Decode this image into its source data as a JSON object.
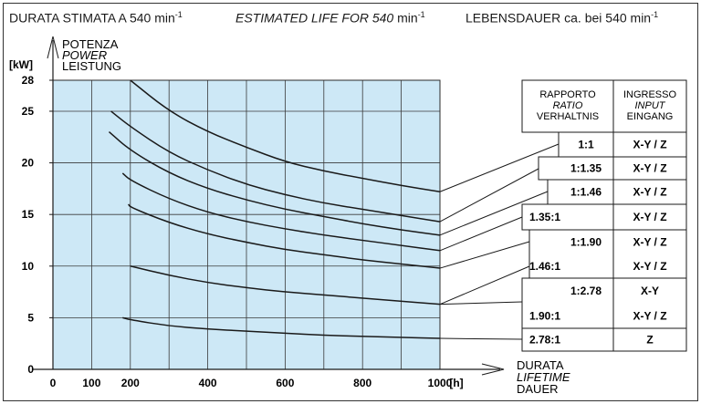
{
  "header": {
    "it_label": "DURATA STIMATA A 540 min",
    "en_label": "ESTIMATED LIFE FOR 540",
    "en_unit": " min",
    "de_label": "LEBENSDAUER ca. bei 540 min",
    "exponent": "-1"
  },
  "chart_data": {
    "type": "line",
    "y_axis": {
      "unit": "[kW]",
      "labels": [
        "POTENZA",
        "POWER",
        "LEISTUNG"
      ],
      "range": [
        0,
        28
      ],
      "ticks": [
        "0",
        "5",
        "10",
        "15",
        "20",
        "25",
        "28"
      ]
    },
    "x_axis": {
      "unit": "[h]",
      "labels": [
        "DURATA",
        "LIFETIME",
        "DAUER"
      ],
      "range": [
        0,
        1000
      ],
      "ticks": [
        "0",
        "100",
        "200",
        "400",
        "600",
        "800",
        "1000"
      ]
    },
    "grid": true,
    "series": [
      {
        "ratio": "1:1",
        "input": "X-Y / Z",
        "x": [
          200,
          300,
          400,
          500,
          600,
          700,
          800,
          900,
          1000
        ],
        "y": [
          28,
          25,
          23,
          21.5,
          20.1,
          19.2,
          18.5,
          17.8,
          17.2
        ]
      },
      {
        "ratio": "1:1.35",
        "input": "X-Y / Z",
        "x": [
          150,
          200,
          300,
          400,
          500,
          600,
          700,
          800,
          900,
          1000
        ],
        "y": [
          25,
          23.5,
          21,
          19.3,
          17.9,
          16.9,
          16.1,
          15.5,
          14.9,
          14.3
        ]
      },
      {
        "ratio": "1:1.46",
        "input": "X-Y / Z",
        "x": [
          145,
          200,
          300,
          400,
          500,
          600,
          700,
          800,
          900,
          1000
        ],
        "y": [
          23,
          21.2,
          19,
          17.5,
          16.4,
          15.5,
          14.8,
          14.1,
          13.5,
          13
        ]
      },
      {
        "ratio": "1:1.90",
        "input": "X-Y / Z",
        "x": [
          180,
          200,
          300,
          400,
          500,
          600,
          700,
          800,
          900,
          1000
        ],
        "y": [
          19,
          18.3,
          16.5,
          15.2,
          14.3,
          13.6,
          13,
          12.5,
          12,
          11.5
        ]
      },
      {
        "ratio": "1.35:1",
        "input": "X-Y / Z",
        "x": [
          195,
          200,
          300,
          400,
          500,
          600,
          700,
          800,
          900,
          1000
        ],
        "y": [
          16,
          15.7,
          14.2,
          13.1,
          12.3,
          11.6,
          11.1,
          10.6,
          10.2,
          9.8
        ]
      },
      {
        "ratio": "1.46:1",
        "input": "X-Y / Z",
        "x": [
          200,
          300,
          400,
          500,
          600,
          700,
          800,
          900,
          1000
        ],
        "y": [
          10,
          9.1,
          8.4,
          7.9,
          7.5,
          7.2,
          6.9,
          6.6,
          6.3
        ]
      },
      {
        "ratio": "1:2.78",
        "input": "X-Y",
        "x": [],
        "y": []
      },
      {
        "ratio": "1.90:1",
        "input": "X-Y / Z",
        "x": [],
        "y": []
      },
      {
        "ratio": "2.78:1",
        "input": "Z",
        "x": [
          180,
          200,
          300,
          400,
          500,
          600,
          700,
          800,
          900,
          1000
        ],
        "y": [
          5,
          4.8,
          4.2,
          3.9,
          3.7,
          3.5,
          3.3,
          3.2,
          3.1,
          3
        ]
      }
    ],
    "table": {
      "col1_header": [
        "RAPPORTO",
        "RATIO",
        "VERHALTNIS"
      ],
      "col2_header": [
        "INGRESSO",
        "INPUT",
        "EINGANG"
      ],
      "rows": [
        {
          "ratio": "1:1",
          "input": "X-Y / Z"
        },
        {
          "ratio": "1:1.35",
          "input": "X-Y / Z"
        },
        {
          "ratio": "1:1.46",
          "input": "X-Y / Z"
        },
        {
          "ratio": "1.35:1",
          "input": "X-Y / Z"
        },
        {
          "ratio": "1:1.90",
          "input": "X-Y / Z"
        },
        {
          "ratio": "1.46:1",
          "input": "X-Y / Z"
        },
        {
          "ratio": "1:2.78",
          "input": "X-Y"
        },
        {
          "ratio": "1.90:1",
          "input": "X-Y / Z"
        },
        {
          "ratio": "2.78:1",
          "input": "Z"
        }
      ]
    }
  }
}
